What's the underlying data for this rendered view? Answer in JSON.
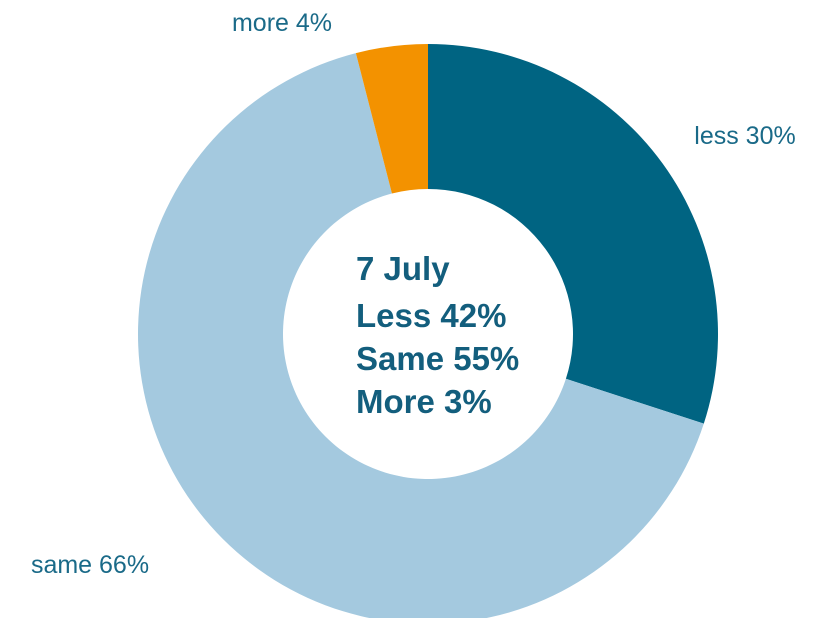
{
  "chart_data": {
    "type": "pie",
    "variant": "donut",
    "slices": [
      {
        "name": "less",
        "label": "less 30%",
        "value": 30,
        "color": "#006482"
      },
      {
        "name": "same",
        "label": "same 66%",
        "value": 66,
        "color": "#a4c9df"
      },
      {
        "name": "more",
        "label": "more 4%",
        "value": 4,
        "color": "#f39200"
      }
    ],
    "start": "12 o'clock",
    "direction": "clockwise",
    "center_text": [
      "7 July",
      "Less 42%",
      "Same 55%",
      "More 3%"
    ],
    "center_text_color": "#135e7d",
    "label_color": "#1a6a88"
  }
}
